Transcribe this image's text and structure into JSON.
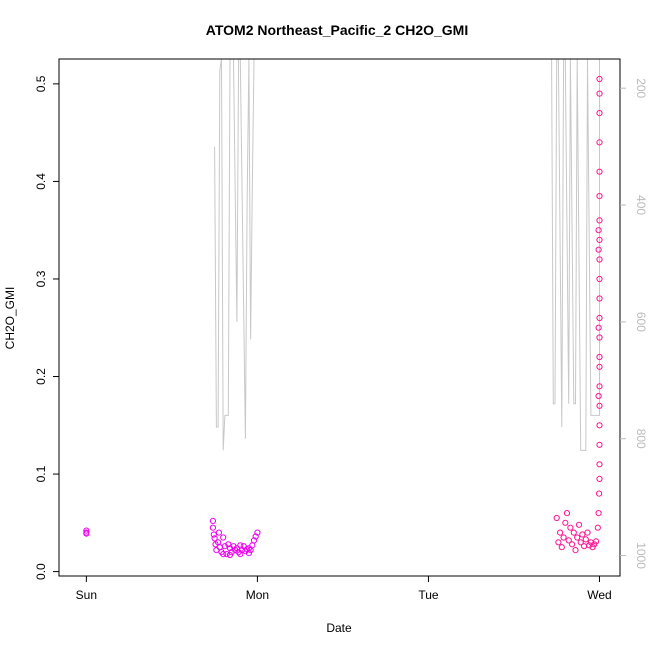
{
  "chart_data": {
    "type": "scatter",
    "title": "ATOM2 Northeast_Pacific_2 CH2O_GMI",
    "xlabel": "Date",
    "ylabel": "CH2O_GMI",
    "x_ticks": [
      "Sun",
      "Mon",
      "Tue",
      "Wed"
    ],
    "xlim": [
      -0.16,
      3.12
    ],
    "ylim": [
      -0.0045,
      0.5255
    ],
    "y_ticks": [
      "0.0",
      "0.1",
      "0.2",
      "0.3",
      "0.4",
      "0.5"
    ],
    "y2_ticks": [
      "200",
      "400",
      "600",
      "800",
      "1000"
    ],
    "y2lim": [
      1035,
      150
    ],
    "grid": false,
    "colors": {
      "scatter_early": "#ee00ee",
      "scatter_late": "#ff1493",
      "pressure_line": "#c8c8c8"
    },
    "series": [
      {
        "color_key": "scatter_early",
        "points": [
          [
            0.0,
            0.039
          ],
          [
            0.0,
            0.042
          ],
          [
            0.0,
            0.04
          ],
          [
            0.74,
            0.052
          ],
          [
            0.74,
            0.045
          ],
          [
            0.745,
            0.038
          ],
          [
            0.75,
            0.034
          ],
          [
            0.755,
            0.028
          ],
          [
            0.76,
            0.022
          ],
          [
            0.77,
            0.03
          ],
          [
            0.78,
            0.025
          ],
          [
            0.79,
            0.02
          ],
          [
            0.8,
            0.035
          ],
          [
            0.81,
            0.026
          ],
          [
            0.82,
            0.018
          ],
          [
            0.83,
            0.028
          ],
          [
            0.84,
            0.024
          ],
          [
            0.85,
            0.02
          ],
          [
            0.86,
            0.026
          ],
          [
            0.87,
            0.022
          ],
          [
            0.88,
            0.024
          ],
          [
            0.89,
            0.02
          ],
          [
            0.9,
            0.027
          ],
          [
            0.91,
            0.022
          ],
          [
            0.92,
            0.026
          ],
          [
            0.93,
            0.021
          ],
          [
            0.94,
            0.023
          ],
          [
            0.95,
            0.019
          ],
          [
            0.96,
            0.022
          ],
          [
            0.97,
            0.027
          ],
          [
            0.98,
            0.032
          ],
          [
            0.99,
            0.036
          ],
          [
            1.0,
            0.04
          ],
          [
            0.775,
            0.04
          ],
          [
            0.8,
            0.018
          ],
          [
            0.84,
            0.017
          ],
          [
            0.9,
            0.018
          ],
          [
            0.95,
            0.024
          ]
        ]
      },
      {
        "color_key": "scatter_late",
        "points": [
          [
            2.75,
            0.055
          ],
          [
            2.76,
            0.03
          ],
          [
            2.77,
            0.04
          ],
          [
            2.78,
            0.025
          ],
          [
            2.79,
            0.035
          ],
          [
            2.8,
            0.05
          ],
          [
            2.81,
            0.06
          ],
          [
            2.82,
            0.032
          ],
          [
            2.83,
            0.045
          ],
          [
            2.84,
            0.028
          ],
          [
            2.85,
            0.04
          ],
          [
            2.86,
            0.022
          ],
          [
            2.87,
            0.035
          ],
          [
            2.88,
            0.048
          ],
          [
            2.89,
            0.03
          ],
          [
            2.9,
            0.038
          ],
          [
            2.91,
            0.026
          ],
          [
            2.92,
            0.033
          ],
          [
            2.93,
            0.04
          ],
          [
            2.94,
            0.027
          ],
          [
            2.95,
            0.03
          ],
          [
            2.96,
            0.025
          ],
          [
            2.97,
            0.028
          ],
          [
            2.98,
            0.031
          ],
          [
            2.99,
            0.045
          ],
          [
            2.995,
            0.06
          ],
          [
            2.998,
            0.08
          ],
          [
            3.0,
            0.095
          ],
          [
            3.0,
            0.11
          ],
          [
            3.0,
            0.13
          ],
          [
            3.0,
            0.15
          ],
          [
            3.0,
            0.17
          ],
          [
            3.0,
            0.19
          ],
          [
            3.0,
            0.21
          ],
          [
            3.0,
            0.22
          ],
          [
            3.0,
            0.24
          ],
          [
            3.0,
            0.26
          ],
          [
            3.0,
            0.28
          ],
          [
            3.0,
            0.3
          ],
          [
            3.0,
            0.32
          ],
          [
            3.0,
            0.34
          ],
          [
            3.0,
            0.36
          ],
          [
            3.0,
            0.385
          ],
          [
            3.0,
            0.41
          ],
          [
            3.0,
            0.44
          ],
          [
            3.0,
            0.47
          ],
          [
            3.0,
            0.49
          ],
          [
            3.0,
            0.505
          ],
          [
            2.995,
            0.18
          ],
          [
            2.995,
            0.25
          ],
          [
            2.995,
            0.33
          ],
          [
            2.995,
            0.35
          ]
        ]
      }
    ],
    "pressure_line": [
      [
        0.75,
        300
      ],
      [
        0.76,
        780
      ],
      [
        0.77,
        780
      ],
      [
        0.78,
        170
      ],
      [
        0.79,
        150
      ],
      [
        0.8,
        820
      ],
      [
        0.81,
        760
      ],
      [
        0.83,
        760
      ],
      [
        0.84,
        150
      ],
      [
        0.86,
        150
      ],
      [
        0.88,
        600
      ],
      [
        0.89,
        150
      ],
      [
        0.9,
        150
      ],
      [
        0.93,
        800
      ],
      [
        0.94,
        400
      ],
      [
        0.95,
        150
      ],
      [
        0.96,
        630
      ],
      [
        0.97,
        370
      ],
      [
        0.98,
        150
      ],
      [
        0.99,
        150
      ],
      [
        2.72,
        150
      ],
      [
        2.73,
        740
      ],
      [
        2.74,
        740
      ],
      [
        2.75,
        150
      ],
      [
        2.76,
        150
      ],
      [
        2.78,
        780
      ],
      [
        2.79,
        150
      ],
      [
        2.8,
        150
      ],
      [
        2.82,
        740
      ],
      [
        2.83,
        150
      ],
      [
        2.85,
        740
      ],
      [
        2.86,
        740
      ],
      [
        2.87,
        150
      ],
      [
        2.89,
        820
      ],
      [
        2.9,
        820
      ],
      [
        2.92,
        820
      ],
      [
        2.93,
        150
      ],
      [
        2.95,
        760
      ],
      [
        2.96,
        760
      ],
      [
        2.98,
        760
      ],
      [
        3.0,
        760
      ],
      [
        3.0,
        150
      ]
    ]
  }
}
